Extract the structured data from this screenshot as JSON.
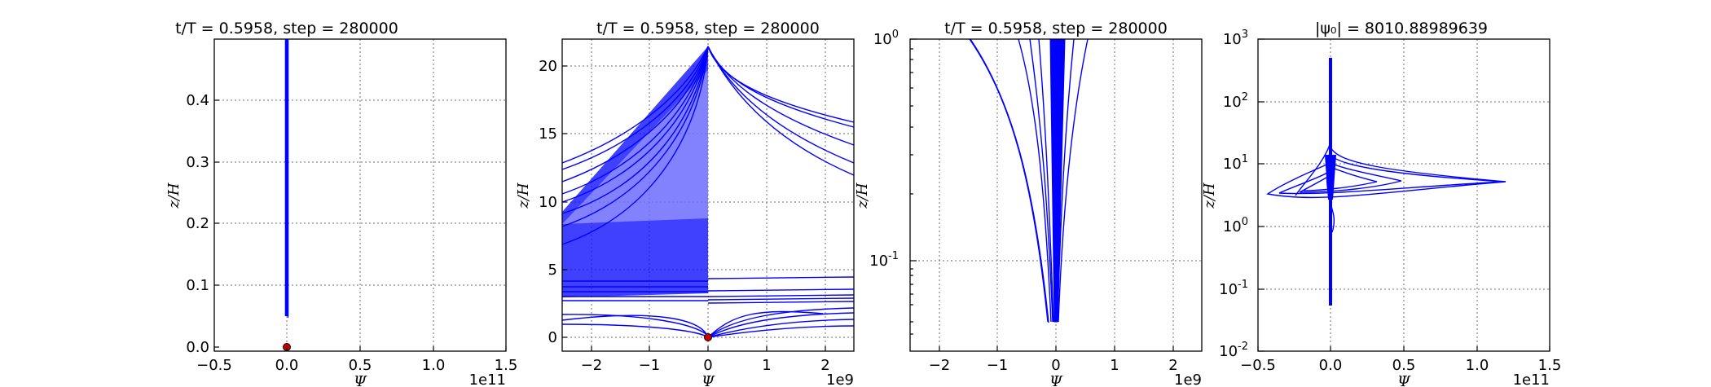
{
  "figure": {
    "panels": [
      {
        "title": "t/T = 0.5958, step = 280000",
        "xlabel": "Ψ",
        "ylabel": "z/H",
        "x_offset_label": "1e11",
        "xscale": "linear",
        "yscale": "linear",
        "xticks": [
          "−0.5",
          "0.0",
          "0.5",
          "1.0",
          "1.5"
        ],
        "yticks": [
          "0.0",
          "0.1",
          "0.2",
          "0.3",
          "0.4"
        ]
      },
      {
        "title": "t/T = 0.5958, step = 280000",
        "xlabel": "Ψ",
        "ylabel": "z/H",
        "x_offset_label": "1e9",
        "xscale": "linear",
        "yscale": "linear",
        "xticks": [
          "−2",
          "−1",
          "0",
          "1",
          "2"
        ],
        "yticks": [
          "0",
          "5",
          "10",
          "15",
          "20"
        ]
      },
      {
        "title": "t/T = 0.5958, step = 280000",
        "xlabel": "Ψ",
        "ylabel": "z/H",
        "x_offset_label": "1e9",
        "xscale": "linear",
        "yscale": "log",
        "xticks": [
          "−2",
          "−1",
          "0",
          "1",
          "2"
        ],
        "yticks_base": [
          "10",
          "10"
        ],
        "yticks_exp": [
          "-1",
          "0"
        ]
      },
      {
        "title": "|ψ₀| = 8010.88989639",
        "xlabel": "Ψ",
        "ylabel": "z/H",
        "x_offset_label": "1e11",
        "xscale": "linear",
        "yscale": "log",
        "xticks": [
          "−0.5",
          "0.0",
          "0.5",
          "1.0",
          "1.5"
        ],
        "yticks_base": [
          "10",
          "10",
          "10",
          "10",
          "10",
          "10"
        ],
        "yticks_exp": [
          "-2",
          "-1",
          "0",
          "1",
          "2",
          "3"
        ]
      }
    ]
  },
  "chart_data": [
    {
      "type": "line",
      "title": "t/T = 0.5958, step = 280000",
      "xlabel": "Ψ",
      "ylabel": "z/H",
      "x_multiplier": "1e11",
      "xlim": [
        -0.5,
        1.5
      ],
      "ylim": [
        -0.01,
        0.5
      ],
      "grid": true,
      "series_color": "#0000ff",
      "marker_color": "#cc0000",
      "series": [
        {
          "x": [
            0.0,
            0.0,
            0.0
          ],
          "y": [
            0.05,
            0.3,
            0.5
          ]
        }
      ],
      "markers": [
        {
          "x": 0.0,
          "y": 0.0
        }
      ]
    },
    {
      "type": "line",
      "title": "t/T = 0.5958, step = 280000",
      "xlabel": "Ψ",
      "ylabel": "z/H",
      "x_multiplier": "1e9",
      "xlim": [
        -2.5,
        2.5
      ],
      "ylim": [
        -1,
        22
      ],
      "grid": true,
      "series_color": "#0000ff",
      "marker_color": "#cc0000",
      "note": "dense family of curves converging to Ψ=0",
      "markers": [
        {
          "x": 0.0,
          "y": 0.0
        }
      ]
    },
    {
      "type": "line",
      "title": "t/T = 0.5958, step = 280000",
      "xlabel": "Ψ",
      "ylabel": "z/H",
      "x_multiplier": "1e9",
      "xlim": [
        -2.5,
        2.5
      ],
      "ylim": [
        0.04,
        1.0
      ],
      "yscale": "log",
      "grid": true,
      "series_color": "#0000ff"
    },
    {
      "type": "line",
      "title": "|ψ₀| = 8010.88989639",
      "xlabel": "Ψ",
      "ylabel": "z/H",
      "x_multiplier": "1e11",
      "xlim": [
        -0.5,
        1.5
      ],
      "ylim": [
        0.01,
        1000
      ],
      "yscale": "log",
      "grid": true,
      "series_color": "#0000ff"
    }
  ]
}
